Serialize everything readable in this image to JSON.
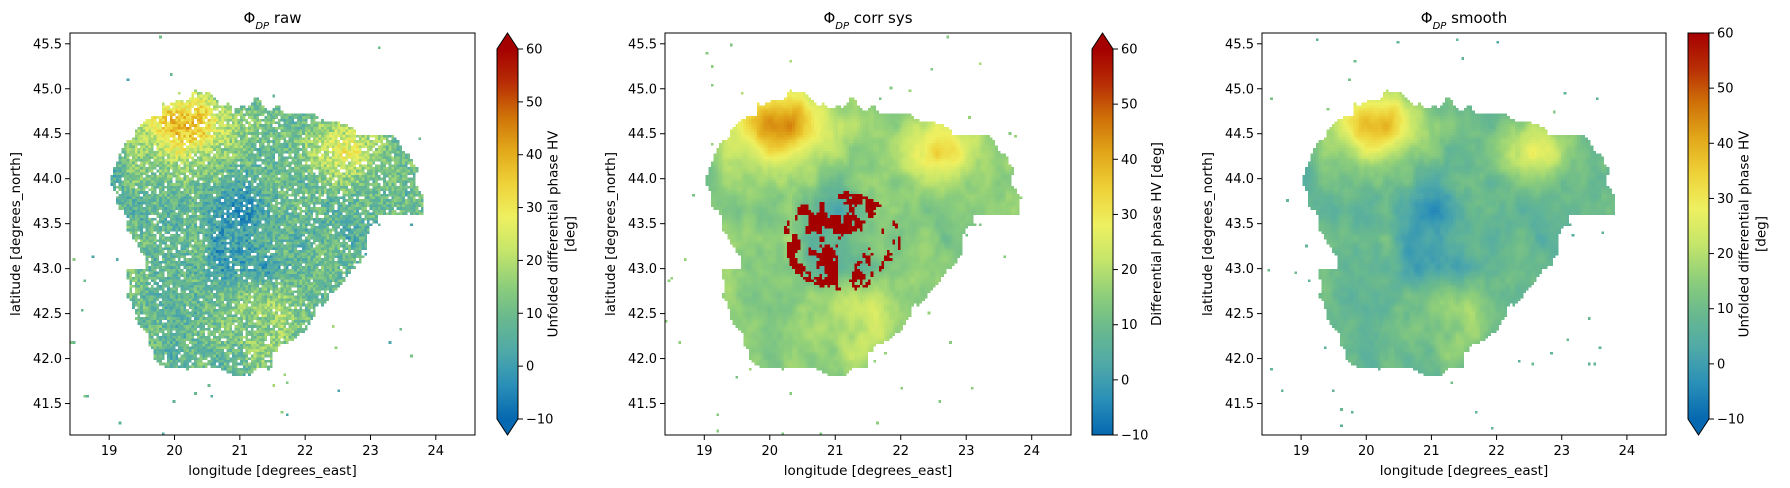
{
  "chart_data": [
    {
      "type": "heatmap",
      "title_symbol": "Φ",
      "title_sub": "DP",
      "title_rest": " raw",
      "xlabel": "longitude [degrees_east]",
      "ylabel": "latitude [degrees_north]",
      "xlim": [
        18.4,
        24.6
      ],
      "ylim": [
        41.15,
        45.62
      ],
      "xticks": [
        "19",
        "20",
        "21",
        "22",
        "23",
        "24"
      ],
      "xtick_values": [
        19,
        20,
        21,
        22,
        23,
        24
      ],
      "yticks": [
        "41.5",
        "42.0",
        "42.5",
        "43.0",
        "43.5",
        "44.0",
        "44.5",
        "45.0",
        "45.5"
      ],
      "ytick_values": [
        41.5,
        42.0,
        42.5,
        43.0,
        43.5,
        44.0,
        44.5,
        45.0,
        45.5
      ],
      "colorbar": {
        "label_lines": [
          "Unfolded differential phase HV",
          "[deg]"
        ],
        "range": [
          -10,
          60
        ],
        "ticks": [
          "−10",
          "0",
          "10",
          "20",
          "30",
          "40",
          "50",
          "60"
        ],
        "tick_values": [
          -10,
          0,
          10,
          20,
          30,
          40,
          50,
          60
        ],
        "extend": "both"
      },
      "variant": "raw"
    },
    {
      "type": "heatmap",
      "title_symbol": "Φ",
      "title_sub": "DP",
      "title_rest": " corr sys",
      "xlabel": "longitude [degrees_east]",
      "ylabel": "latitude [degrees_north]",
      "xlim": [
        18.4,
        24.6
      ],
      "ylim": [
        41.15,
        45.62
      ],
      "xticks": [
        "19",
        "20",
        "21",
        "22",
        "23",
        "24"
      ],
      "xtick_values": [
        19,
        20,
        21,
        22,
        23,
        24
      ],
      "yticks": [
        "41.5",
        "42.0",
        "42.5",
        "43.0",
        "43.5",
        "44.0",
        "44.5",
        "45.0",
        "45.5"
      ],
      "ytick_values": [
        41.5,
        42.0,
        42.5,
        43.0,
        43.5,
        44.0,
        44.5,
        45.0,
        45.5
      ],
      "colorbar": {
        "label_lines": [
          "Differential phase HV [deg]"
        ],
        "range": [
          -10,
          60
        ],
        "ticks": [
          "−10",
          "0",
          "10",
          "20",
          "30",
          "40",
          "50",
          "60"
        ],
        "tick_values": [
          -10,
          0,
          10,
          20,
          30,
          40,
          50,
          60
        ],
        "extend": "max"
      },
      "variant": "corr"
    },
    {
      "type": "heatmap",
      "title_symbol": "Φ",
      "title_sub": "DP",
      "title_rest": " smooth",
      "xlabel": "longitude [degrees_east]",
      "ylabel": "latitude [degrees_north]",
      "xlim": [
        18.4,
        24.6
      ],
      "ylim": [
        41.15,
        45.62
      ],
      "xticks": [
        "19",
        "20",
        "21",
        "22",
        "23",
        "24"
      ],
      "xtick_values": [
        19,
        20,
        21,
        22,
        23,
        24
      ],
      "yticks": [
        "41.5",
        "42.0",
        "42.5",
        "43.0",
        "43.5",
        "44.0",
        "44.5",
        "45.0",
        "45.5"
      ],
      "ytick_values": [
        41.5,
        42.0,
        42.5,
        43.0,
        43.5,
        44.0,
        44.5,
        45.0,
        45.5
      ],
      "colorbar": {
        "label_lines": [
          "Unfolded differential phase HV",
          "[deg]"
        ],
        "range": [
          -10,
          60
        ],
        "ticks": [
          "−10",
          "0",
          "10",
          "20",
          "30",
          "40",
          "50",
          "60"
        ],
        "tick_values": [
          -10,
          0,
          10,
          20,
          30,
          40,
          50,
          60
        ],
        "extend": "min"
      },
      "variant": "smooth"
    }
  ],
  "colors": {
    "colormap": [
      "#0568b0",
      "#2a8fb8",
      "#4fa9a8",
      "#69b98e",
      "#8fcf7a",
      "#c6e66a",
      "#eef060",
      "#eed239",
      "#e2a81a",
      "#cf7208",
      "#b82d05",
      "#a50000"
    ]
  }
}
